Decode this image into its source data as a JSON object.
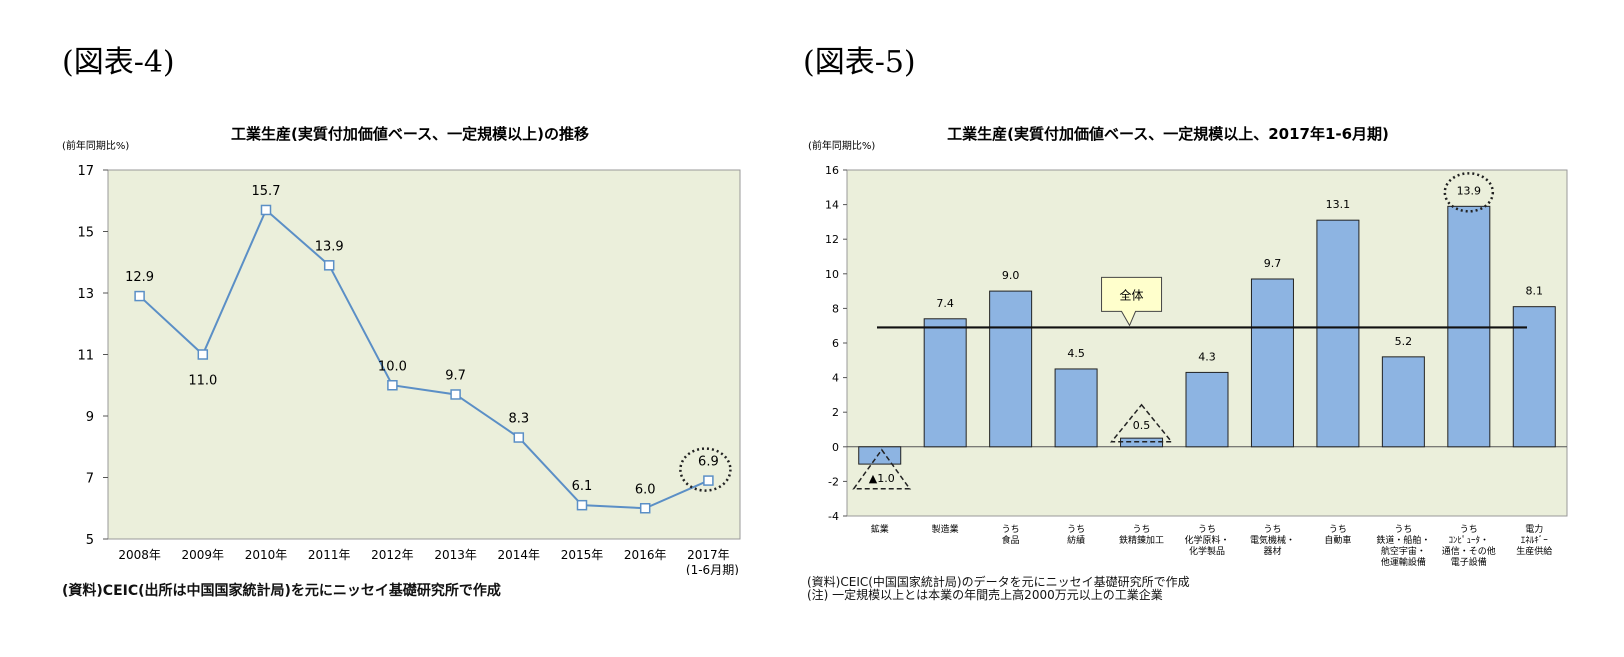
{
  "figure4": {
    "label": "(図表-4)",
    "source": "(資料)CEIC(出所は中国国家統計局)を元にニッセイ基礎研究所で作成"
  },
  "figure5": {
    "label": "(図表-5)",
    "source": "(資料)CEIC(中国国家統計局)のデータを元にニッセイ基礎研究所で作成",
    "note": "(注) 一定規模以上とは本業の年間売上高2000万元以上の工業企業"
  },
  "chart_data": [
    {
      "type": "line",
      "title": "工業生産(実質付加価値ベース、一定規模以上)の推移",
      "ylabel": "(前年同期比%)",
      "categories": [
        "2008年",
        "2009年",
        "2010年",
        "2011年",
        "2012年",
        "2013年",
        "2014年",
        "2015年",
        "2016年",
        "2017年\n(1-6月期)"
      ],
      "values": [
        12.9,
        11.0,
        15.7,
        13.9,
        10.0,
        9.7,
        8.3,
        6.1,
        6.0,
        6.9
      ],
      "value_labels": [
        "12.9",
        "11.0",
        "15.7",
        "13.9",
        "10.0",
        "9.7",
        "8.3",
        "6.1",
        "6.0",
        "6.9"
      ],
      "ylim": [
        5,
        17
      ],
      "yticks": [
        5,
        7,
        9,
        11,
        13,
        15,
        17
      ],
      "highlight_index": 9,
      "line_color": "#5b8fc6",
      "background_color": "#ebefdb"
    },
    {
      "type": "bar",
      "title": "工業生産(実質付加価値ベース、一定規模以上、2017年1-6月期)",
      "ylabel": "(前年同期比%)",
      "categories": [
        "鉱業",
        "製造業",
        "うち\n食品",
        "うち\n紡績",
        "うち\n鉄精錬加工",
        "うち\n化学原料・\n化学製品",
        "うち\n電気機械・\n器材",
        "うち\n自動車",
        "うち\n鉄道・船舶・\n航空宇宙・\n他運輸設備",
        "うち\nｺﾝﾋﾟｭｰﾀ・\n通信・その他\n電子設備",
        "電力\nｴﾈﾙｷﾞｰ\n生産供給"
      ],
      "values": [
        -1.0,
        7.4,
        9.0,
        4.5,
        0.5,
        4.3,
        9.7,
        13.1,
        5.2,
        13.9,
        8.1
      ],
      "value_labels": [
        "▲1.0",
        "7.4",
        "9.0",
        "4.5",
        "0.5",
        "4.3",
        "9.7",
        "13.1",
        "5.2",
        "13.9",
        "8.1"
      ],
      "ylim": [
        -4,
        16
      ],
      "yticks": [
        -4,
        -2,
        0,
        2,
        4,
        6,
        8,
        10,
        12,
        14,
        16
      ],
      "reference_line": {
        "label": "全体",
        "value": 6.9
      },
      "highlight_index": 9,
      "bar_color": "#8db4e2",
      "background_color": "#ebefdb"
    }
  ]
}
